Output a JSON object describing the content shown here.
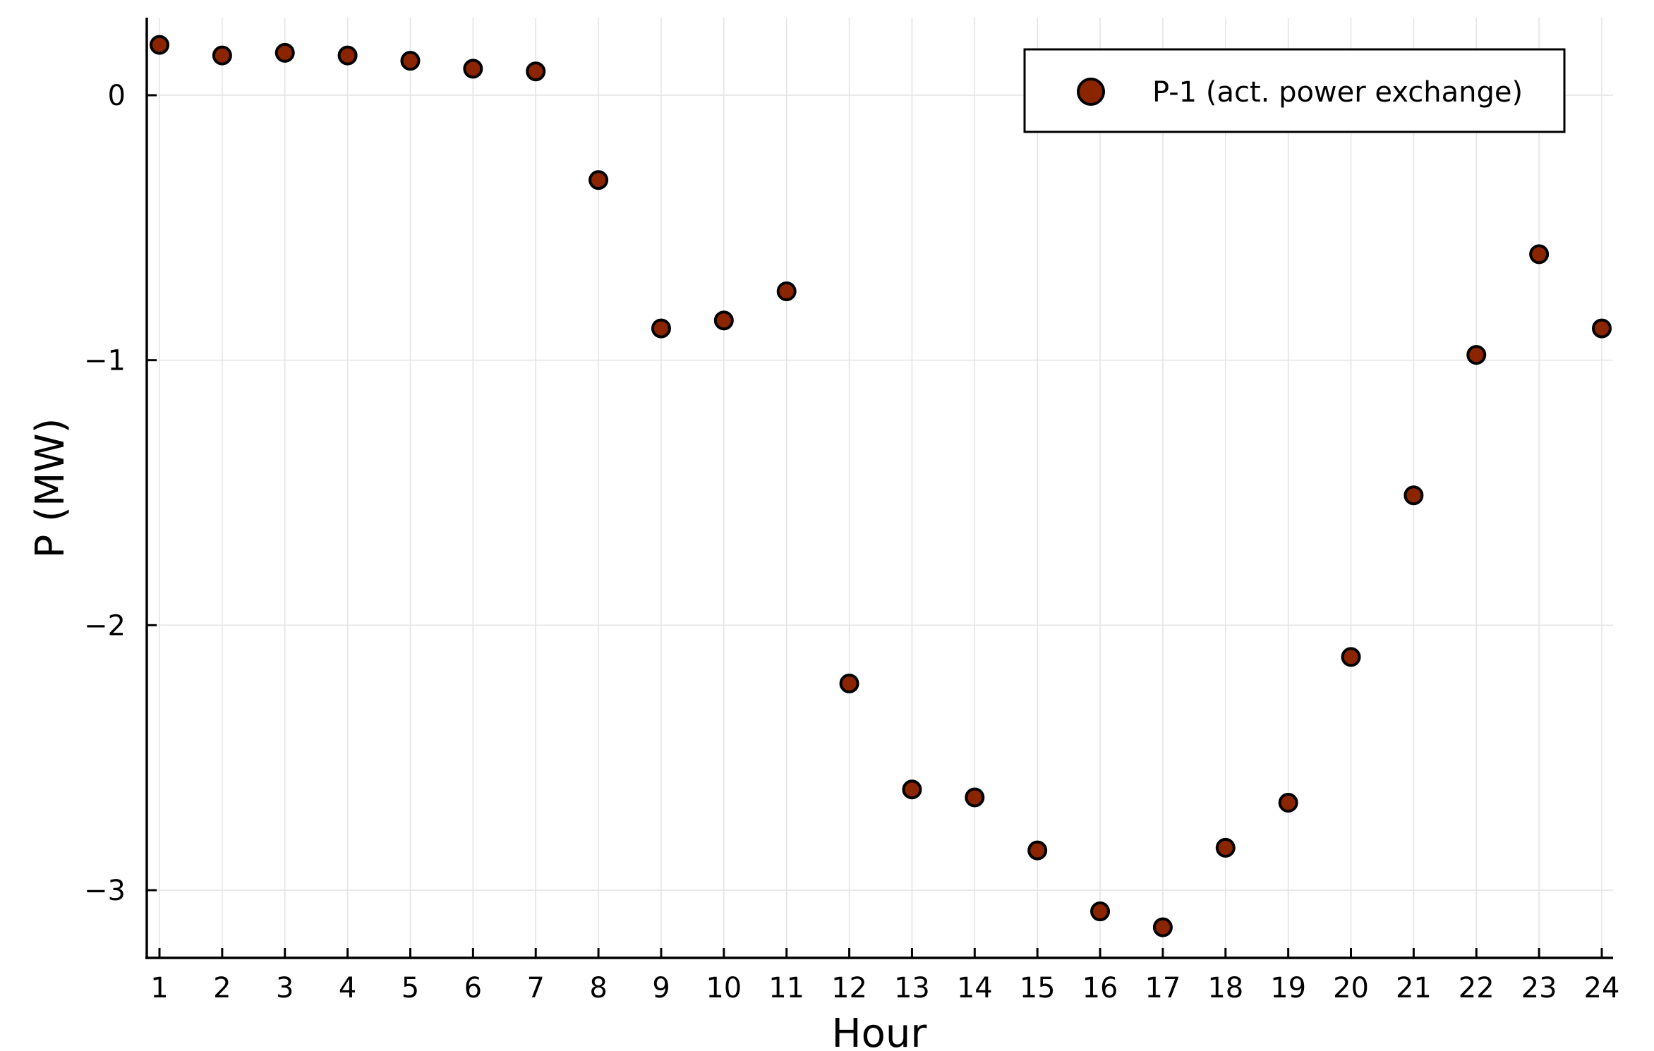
{
  "chart_data": {
    "type": "scatter",
    "title": "",
    "xlabel": "Hour",
    "ylabel": "P (MW)",
    "xlim": [
      0.8,
      24.2
    ],
    "ylim": [
      -3.25,
      0.3
    ],
    "x_ticks": [
      1,
      2,
      3,
      4,
      5,
      6,
      7,
      8,
      9,
      10,
      11,
      12,
      13,
      14,
      15,
      16,
      17,
      18,
      19,
      20,
      21,
      22,
      23,
      24
    ],
    "x_tick_labels": [
      "1",
      "2",
      "3",
      "4",
      "5",
      "6",
      "7",
      "8",
      "9",
      "10",
      "11",
      "12",
      "13",
      "14",
      "15",
      "16",
      "17",
      "18",
      "19",
      "20",
      "21",
      "22",
      "23",
      "24"
    ],
    "y_ticks": [
      0,
      -1,
      -2,
      -3
    ],
    "y_tick_labels": [
      "0",
      "−1",
      "−2",
      "−3"
    ],
    "grid": true,
    "legend_position": "top-right",
    "series": [
      {
        "name": "P-1 (act. power exchange)",
        "color": "#8b2500",
        "edge_color": "#000000",
        "x": [
          1,
          2,
          3,
          4,
          5,
          6,
          7,
          8,
          9,
          10,
          11,
          12,
          13,
          14,
          15,
          16,
          17,
          18,
          19,
          20,
          21,
          22,
          23,
          24
        ],
        "values": [
          0.19,
          0.15,
          0.16,
          0.15,
          0.13,
          0.1,
          0.09,
          -0.32,
          -0.88,
          -0.85,
          -0.74,
          -2.22,
          -2.62,
          -2.65,
          -2.85,
          -3.08,
          -3.14,
          -2.84,
          -2.67,
          -2.12,
          -1.51,
          -0.98,
          -0.6,
          -0.88
        ]
      }
    ]
  }
}
